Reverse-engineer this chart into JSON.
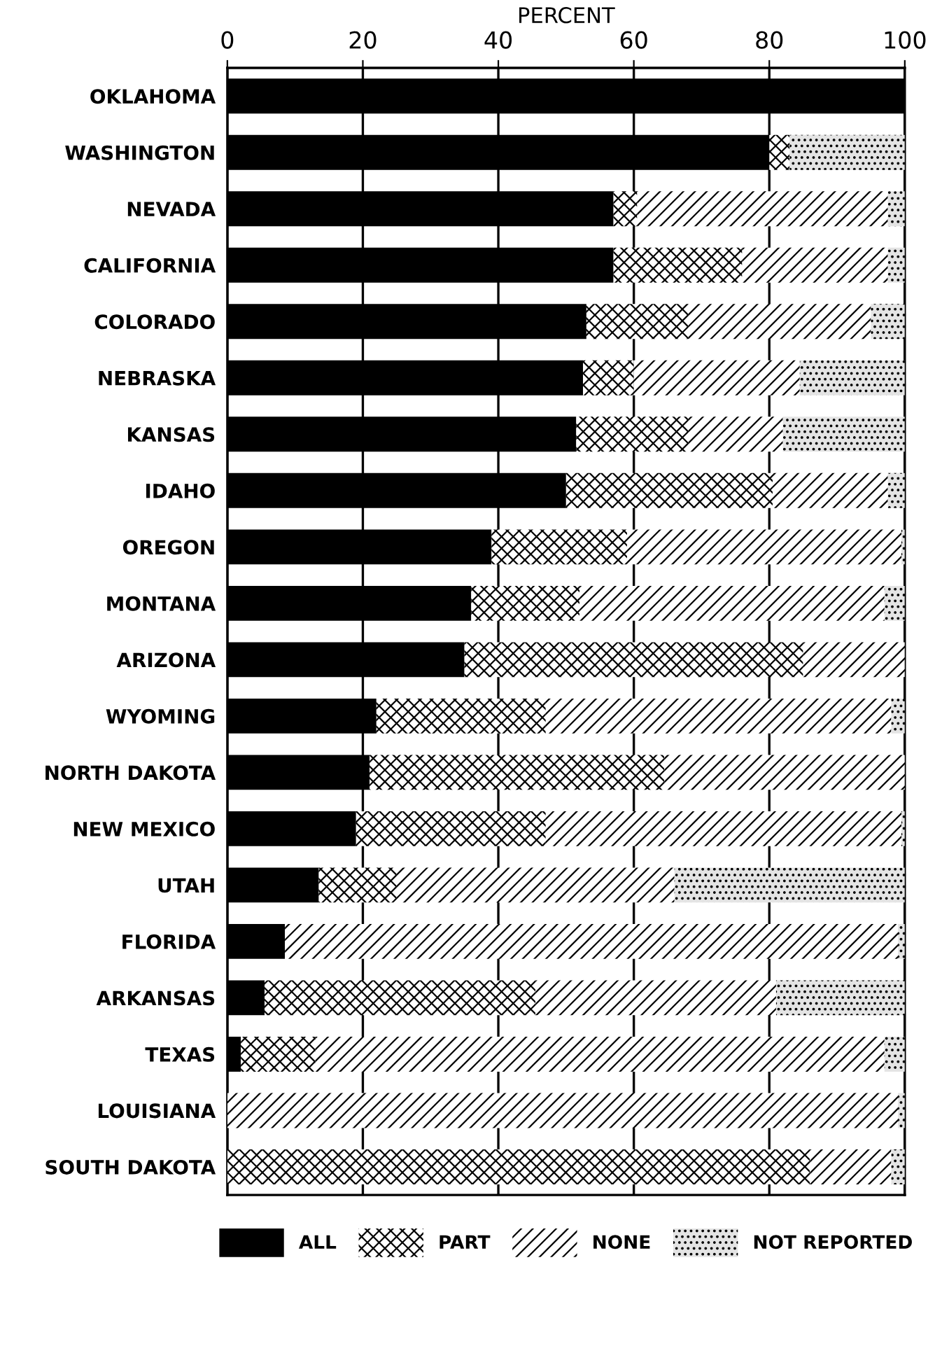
{
  "chart_data": {
    "type": "bar",
    "orientation": "horizontal",
    "stacked": true,
    "xlabel": "PERCENT",
    "categories": [
      "OKLAHOMA",
      "WASHINGTON",
      "NEVADA",
      "CALIFORNIA",
      "COLORADO",
      "NEBRASKA",
      "KANSAS",
      "IDAHO",
      "OREGON",
      "MONTANA",
      "ARIZONA",
      "WYOMING",
      "NORTH DAKOTA",
      "NEW MEXICO",
      "UTAH",
      "FLORIDA",
      "ARKANSAS",
      "TEXAS",
      "LOUISIANA",
      "SOUTH DAKOTA"
    ],
    "series": [
      {
        "name": "ALL",
        "color": "#000000",
        "values": [
          100,
          80,
          57,
          57,
          53,
          52.5,
          51.5,
          50,
          39,
          36,
          35,
          22,
          21,
          19,
          13.5,
          8.5,
          5.5,
          2,
          0,
          0
        ]
      },
      {
        "name": "PART",
        "color": "#ffffff",
        "values": [
          0,
          3,
          3.5,
          19,
          15,
          7.5,
          16.5,
          30.5,
          20,
          16,
          50,
          25,
          43.5,
          28,
          11.5,
          0,
          40,
          11,
          0,
          86
        ]
      },
      {
        "name": "NONE",
        "color": "#ffffff",
        "values": [
          0,
          0,
          37,
          21.5,
          27,
          24.5,
          14,
          17,
          40.5,
          45,
          15,
          51,
          35.5,
          52.5,
          41,
          90.5,
          35.5,
          84,
          99,
          12
        ]
      },
      {
        "name": "NOT REPORTED",
        "color": "#e4e4e4",
        "values": [
          0,
          17,
          2.5,
          2.5,
          5,
          15.5,
          18,
          2.5,
          0.5,
          3,
          0,
          2,
          0,
          0.5,
          34,
          1,
          19,
          3,
          1,
          2
        ]
      }
    ],
    "xlim": [
      0,
      100
    ],
    "xticks": [
      0,
      20,
      40,
      60,
      80,
      100
    ],
    "grid": "x",
    "legend": "bottom"
  }
}
